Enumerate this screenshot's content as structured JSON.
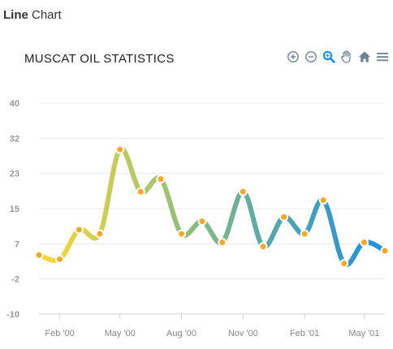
{
  "header": {
    "bold": "Line",
    "rest": " Chart"
  },
  "toolbar": {
    "icons": [
      "zoom-in-icon",
      "zoom-out-icon",
      "selection-zoom-icon",
      "pan-icon",
      "home-icon",
      "menu-icon"
    ],
    "icon_color": "#6e8192",
    "active_color": "#008ffb"
  },
  "chart_data": {
    "type": "line",
    "title": "MUSCAT OIL STATISTICS",
    "x": [
      "2000-01-01",
      "2000-02-01",
      "2000-03-01",
      "2000-04-01",
      "2000-05-01",
      "2000-06-01",
      "2000-07-01",
      "2000-08-01",
      "2000-09-01",
      "2000-10-01",
      "2000-11-01",
      "2000-12-01",
      "2001-01-01",
      "2001-02-01",
      "2001-03-01",
      "2001-04-01",
      "2001-05-01",
      "2001-06-01"
    ],
    "values": [
      4,
      3,
      10,
      9,
      29,
      19,
      22,
      9,
      12,
      7,
      19,
      6,
      13,
      9,
      17,
      2,
      7,
      5
    ],
    "xtick_labels": [
      "Feb '00",
      "May '00",
      "Aug '00",
      "Nov '00",
      "Feb '01",
      "May '01"
    ],
    "xtick_dates": [
      "2000-02-01",
      "2000-05-01",
      "2000-08-01",
      "2000-11-01",
      "2001-02-01",
      "2001-05-01"
    ],
    "ytick_labels": [
      "40",
      "32",
      "23",
      "15",
      "7",
      "-2",
      "-10"
    ],
    "ylim": [
      -10,
      40
    ],
    "grid": true,
    "curve": "smooth",
    "gradient_colors": [
      "#fdd835",
      "#a8c66c",
      "#58a8a8",
      "#1e90e0"
    ],
    "marker_color": "#f9a825",
    "marker_stroke": "#ffffff"
  }
}
